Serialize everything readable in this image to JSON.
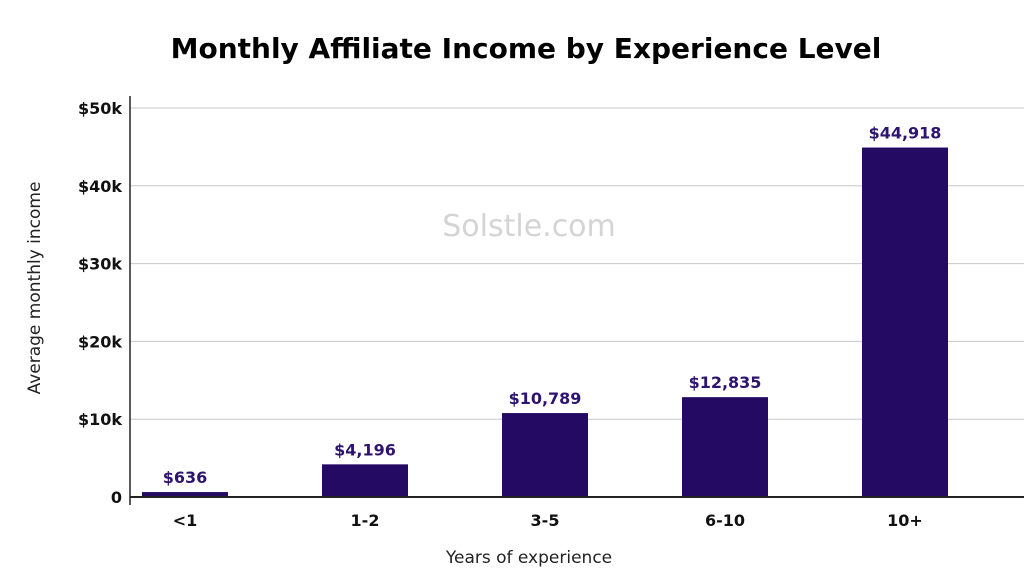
{
  "watermark": "Solstle.com",
  "colors": {
    "bar": "#240a63",
    "data_label": "#2e1470",
    "grid": "#c8c8c8",
    "axis": "#222222"
  },
  "chart_data": {
    "type": "bar",
    "title": "Monthly Affiliate Income by Experience Level",
    "xlabel": "Years of experience",
    "ylabel": "Average monthly income",
    "categories": [
      "<1",
      "1-2",
      "3-5",
      "6-10",
      "10+"
    ],
    "values": [
      636,
      4196,
      10789,
      12835,
      44918
    ],
    "data_labels": [
      "$636",
      "$4,196",
      "$10,789",
      "$12,835",
      "$44,918"
    ],
    "ylim": [
      0,
      50000
    ],
    "yticks": [
      0,
      10000,
      20000,
      30000,
      40000,
      50000
    ],
    "ytick_labels": [
      "0",
      "$10k",
      "$20k",
      "$30k",
      "$40k",
      "$50k"
    ],
    "grid": true,
    "legend": false
  }
}
